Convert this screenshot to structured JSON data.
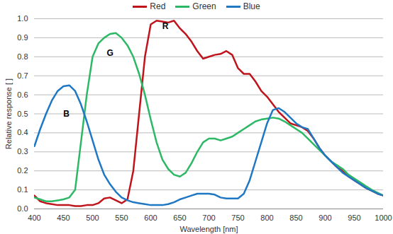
{
  "chart_data": {
    "type": "line",
    "x_label": "Wavelength [nm]",
    "y_label": "Relative response [ ]",
    "legend": "top",
    "grid": "y",
    "xlim": [
      400,
      1000
    ],
    "xticks": [
      400,
      450,
      500,
      550,
      600,
      650,
      700,
      750,
      800,
      850,
      900,
      950,
      1000
    ],
    "ylim": [
      0,
      1
    ],
    "yticks": [
      {
        "value": 0,
        "label": "0.0"
      },
      0.1,
      0.2,
      0.3,
      0.4,
      0.5,
      0.6,
      0.7,
      0.8,
      0.9,
      {
        "value": 1,
        "label": "1.0"
      }
    ],
    "x": [
      400,
      410,
      420,
      430,
      440,
      450,
      460,
      470,
      480,
      490,
      500,
      510,
      520,
      530,
      540,
      550,
      560,
      570,
      580,
      590,
      600,
      610,
      620,
      630,
      640,
      650,
      660,
      670,
      680,
      690,
      700,
      710,
      720,
      730,
      740,
      750,
      760,
      770,
      780,
      790,
      800,
      810,
      820,
      830,
      840,
      850,
      860,
      870,
      880,
      890,
      900,
      910,
      920,
      930,
      940,
      950,
      960,
      970,
      980,
      990,
      1000
    ],
    "series": [
      {
        "name": "Red",
        "color": "#c0141c",
        "values": [
          0.07,
          0.04,
          0.03,
          0.025,
          0.02,
          0.02,
          0.02,
          0.015,
          0.015,
          0.02,
          0.02,
          0.03,
          0.055,
          0.06,
          0.045,
          0.03,
          0.05,
          0.2,
          0.5,
          0.8,
          0.97,
          0.99,
          0.985,
          0.98,
          0.99,
          0.95,
          0.92,
          0.88,
          0.83,
          0.79,
          0.8,
          0.81,
          0.815,
          0.83,
          0.81,
          0.74,
          0.71,
          0.71,
          0.67,
          0.62,
          0.59,
          0.55,
          0.51,
          0.48,
          0.45,
          0.44,
          0.43,
          0.41,
          0.37,
          0.32,
          0.28,
          0.25,
          0.22,
          0.2,
          0.17,
          0.15,
          0.13,
          0.11,
          0.095,
          0.08,
          0.07
        ]
      },
      {
        "name": "Green",
        "color": "#2db866",
        "values": [
          0.06,
          0.05,
          0.04,
          0.04,
          0.045,
          0.05,
          0.06,
          0.1,
          0.35,
          0.6,
          0.8,
          0.87,
          0.9,
          0.92,
          0.925,
          0.9,
          0.86,
          0.8,
          0.71,
          0.6,
          0.47,
          0.35,
          0.26,
          0.21,
          0.18,
          0.17,
          0.19,
          0.24,
          0.3,
          0.35,
          0.37,
          0.37,
          0.36,
          0.37,
          0.38,
          0.4,
          0.42,
          0.44,
          0.46,
          0.47,
          0.475,
          0.48,
          0.475,
          0.46,
          0.44,
          0.42,
          0.4,
          0.37,
          0.34,
          0.31,
          0.28,
          0.25,
          0.23,
          0.21,
          0.18,
          0.16,
          0.14,
          0.12,
          0.1,
          0.085,
          0.07
        ]
      },
      {
        "name": "Blue",
        "color": "#1f78c4",
        "values": [
          0.33,
          0.42,
          0.5,
          0.57,
          0.62,
          0.645,
          0.65,
          0.62,
          0.55,
          0.46,
          0.36,
          0.26,
          0.18,
          0.13,
          0.09,
          0.06,
          0.045,
          0.035,
          0.03,
          0.025,
          0.02,
          0.02,
          0.02,
          0.025,
          0.035,
          0.05,
          0.06,
          0.07,
          0.08,
          0.08,
          0.08,
          0.075,
          0.06,
          0.055,
          0.055,
          0.055,
          0.08,
          0.15,
          0.25,
          0.35,
          0.45,
          0.52,
          0.53,
          0.51,
          0.48,
          0.45,
          0.43,
          0.42,
          0.37,
          0.32,
          0.28,
          0.25,
          0.22,
          0.19,
          0.17,
          0.15,
          0.13,
          0.11,
          0.095,
          0.08,
          0.07
        ]
      }
    ],
    "annotations": [
      {
        "text": "R",
        "x": 625,
        "y": 0.96
      },
      {
        "text": "G",
        "x": 530,
        "y": 0.82
      },
      {
        "text": "B",
        "x": 455,
        "y": 0.5
      }
    ]
  }
}
